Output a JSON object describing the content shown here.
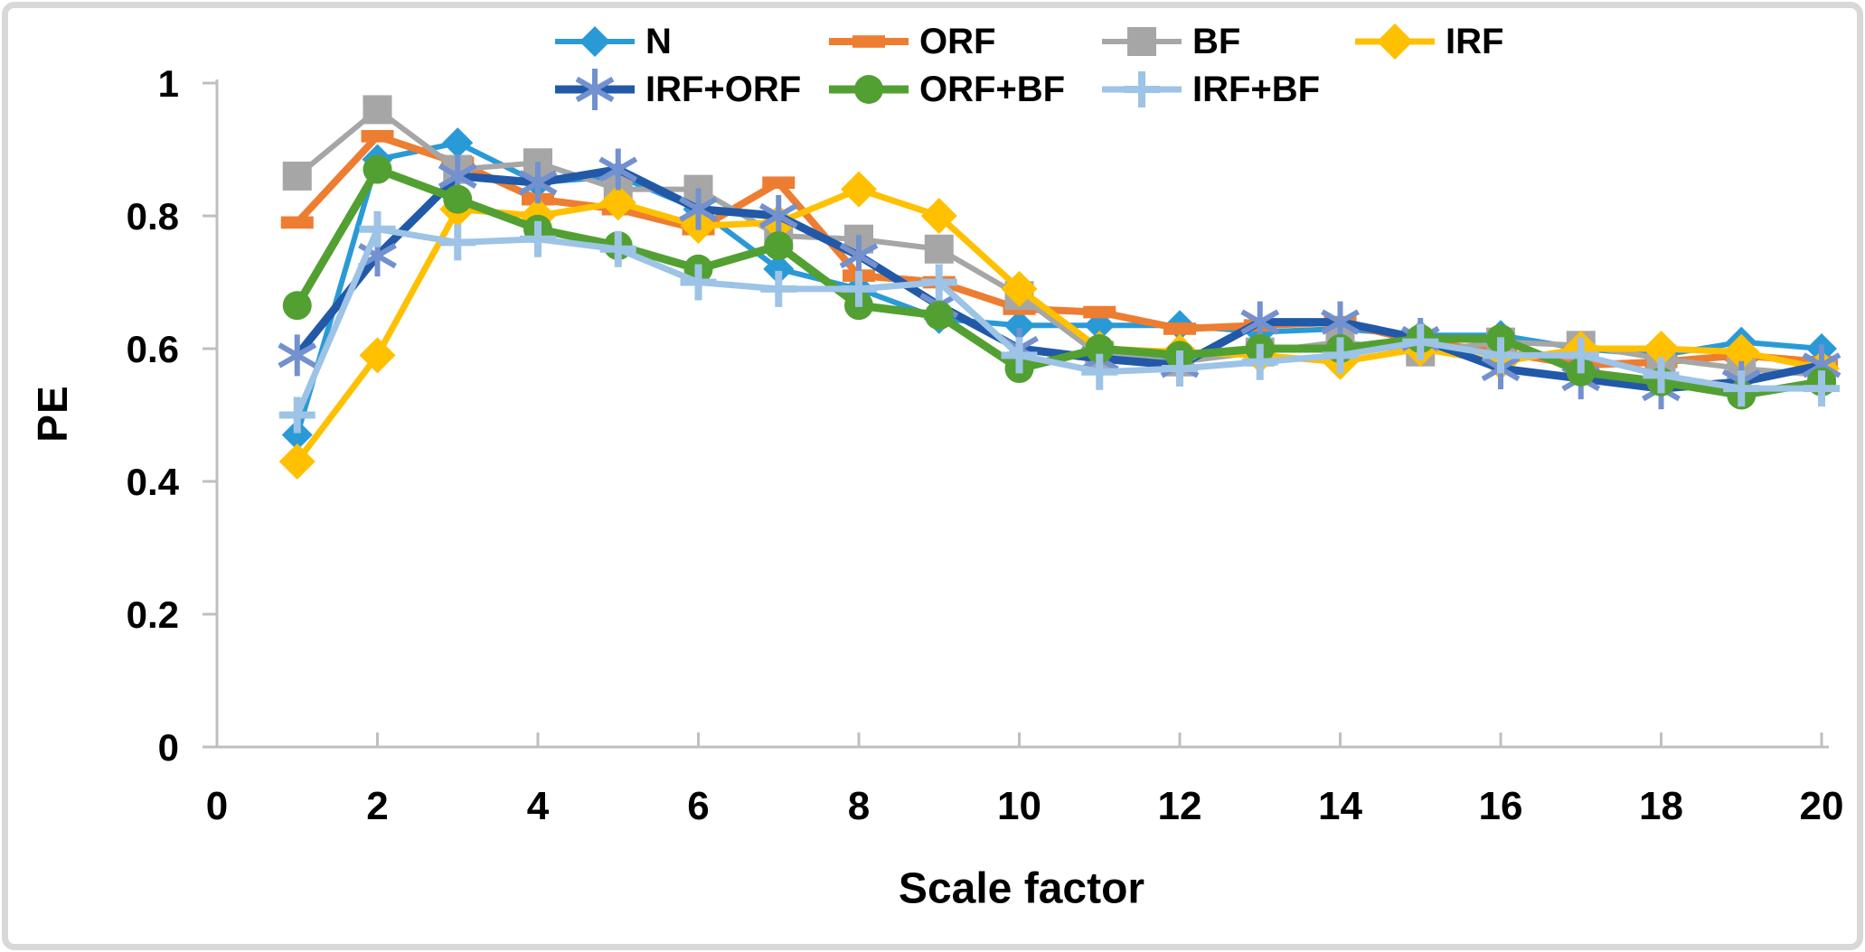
{
  "frame": {
    "border_color": "#d8d8d8",
    "background": "#ffffff"
  },
  "chart_data": {
    "type": "line",
    "title": "",
    "xlabel": "Scale factor",
    "ylabel": "PE",
    "xlim": [
      0,
      20
    ],
    "ylim": [
      0,
      1
    ],
    "grid": false,
    "legend_position": "top",
    "axis_color": "#bfbfbf",
    "tick_label_color": "#000000",
    "x": [
      1,
      2,
      3,
      4,
      5,
      6,
      7,
      8,
      9,
      10,
      11,
      12,
      13,
      14,
      15,
      16,
      17,
      18,
      19,
      20
    ],
    "x_tick_labels": [
      "0",
      "2",
      "4",
      "6",
      "8",
      "10",
      "12",
      "14",
      "16",
      "18",
      "20"
    ],
    "x_tick_values": [
      0,
      2,
      4,
      6,
      8,
      10,
      12,
      14,
      16,
      18,
      20
    ],
    "y_tick_labels": [
      "0",
      "0.2",
      "0.4",
      "0.6",
      "0.8",
      "1"
    ],
    "y_tick_values": [
      0,
      0.2,
      0.4,
      0.6,
      0.8,
      1
    ],
    "series": [
      {
        "name": "N",
        "marker": "diamond",
        "color": "#2a9ad7",
        "values": [
          0.47,
          0.885,
          0.91,
          0.85,
          0.86,
          0.81,
          0.72,
          0.69,
          0.645,
          0.635,
          0.635,
          0.635,
          0.625,
          0.63,
          0.62,
          0.62,
          0.6,
          0.59,
          0.61,
          0.6
        ]
      },
      {
        "name": "ORF",
        "marker": "dash",
        "color": "#ed7d31",
        "values": [
          0.79,
          0.92,
          0.88,
          0.825,
          0.81,
          0.78,
          0.85,
          0.71,
          0.7,
          0.66,
          0.655,
          0.63,
          0.635,
          0.64,
          0.61,
          0.595,
          0.575,
          0.58,
          0.59,
          0.58
        ]
      },
      {
        "name": "BF",
        "marker": "square",
        "color": "#a6a6a6",
        "values": [
          0.86,
          0.96,
          0.87,
          0.88,
          0.84,
          0.84,
          0.77,
          0.765,
          0.75,
          0.68,
          0.59,
          0.58,
          0.595,
          0.61,
          0.595,
          0.61,
          0.605,
          0.585,
          0.57,
          0.56
        ]
      },
      {
        "name": "IRF",
        "marker": "diamond",
        "color": "#ffc000",
        "values": [
          0.43,
          0.59,
          0.81,
          0.8,
          0.82,
          0.785,
          0.79,
          0.84,
          0.8,
          0.69,
          0.6,
          0.595,
          0.59,
          0.58,
          0.6,
          0.58,
          0.6,
          0.6,
          0.595,
          0.57
        ]
      },
      {
        "name": "IRF+ORF",
        "marker": "asterisk",
        "color": "#2159a8",
        "marker_color": "#7291ce",
        "values": [
          0.59,
          0.74,
          0.86,
          0.85,
          0.87,
          0.81,
          0.8,
          0.74,
          0.665,
          0.6,
          0.585,
          0.575,
          0.64,
          0.64,
          0.615,
          0.57,
          0.555,
          0.54,
          0.55,
          0.575
        ]
      },
      {
        "name": "ORF+BF",
        "marker": "circle",
        "color": "#52a032",
        "values": [
          0.665,
          0.87,
          0.825,
          0.78,
          0.755,
          0.72,
          0.755,
          0.665,
          0.65,
          0.57,
          0.6,
          0.59,
          0.6,
          0.6,
          0.615,
          0.615,
          0.565,
          0.55,
          0.53,
          0.55
        ]
      },
      {
        "name": "IRF+BF",
        "marker": "plus",
        "color": "#9dc3e6",
        "values": [
          0.5,
          0.78,
          0.76,
          0.765,
          0.75,
          0.7,
          0.69,
          0.69,
          0.7,
          0.59,
          0.565,
          0.57,
          0.58,
          0.59,
          0.61,
          0.59,
          0.59,
          0.56,
          0.54,
          0.54
        ]
      }
    ]
  }
}
